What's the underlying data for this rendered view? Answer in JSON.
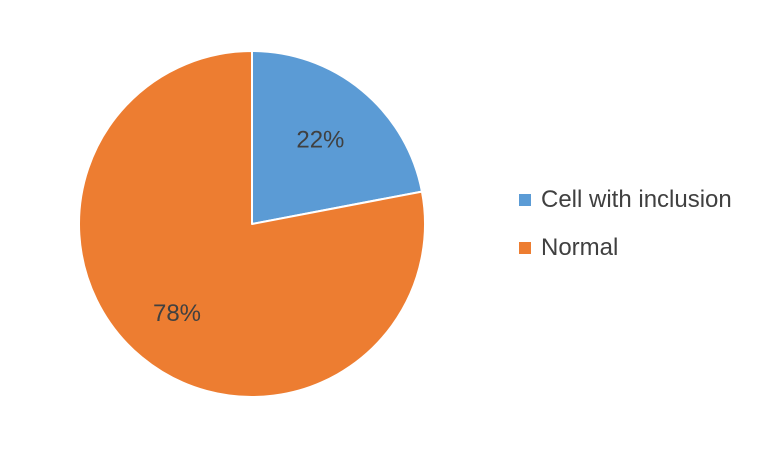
{
  "chart_data": {
    "type": "pie",
    "title": "",
    "categories": [
      "Cell with inclusion",
      "Normal"
    ],
    "values": [
      22,
      78
    ],
    "labels": [
      "22%",
      "78%"
    ],
    "colors": [
      "#5B9BD5",
      "#ED7D31"
    ],
    "legend_position": "right"
  }
}
